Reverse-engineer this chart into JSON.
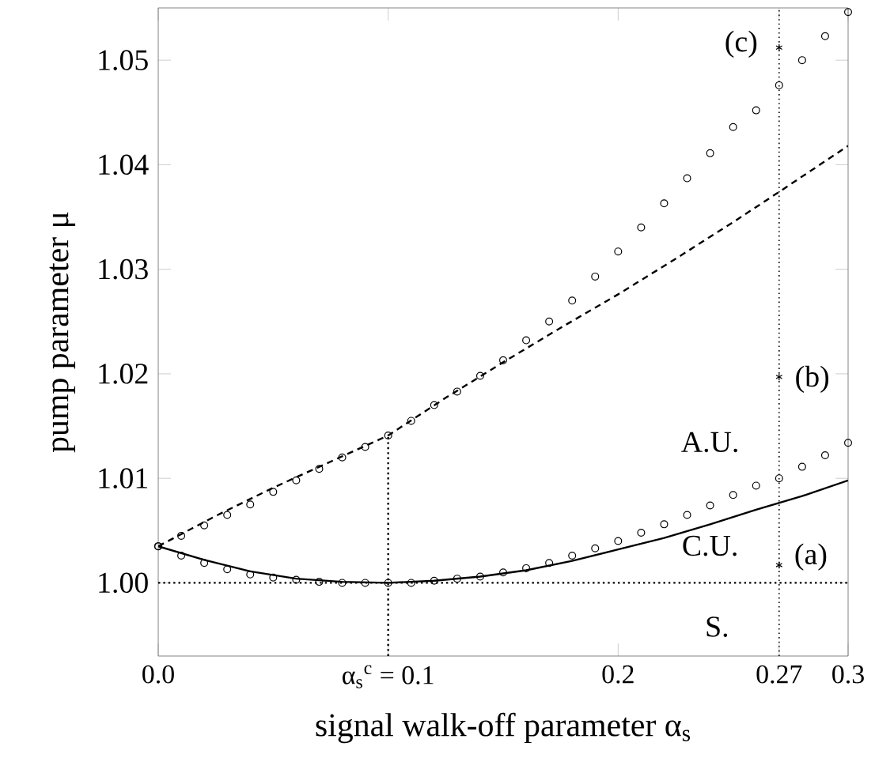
{
  "chart_data": {
    "type": "line",
    "xlabel": "signal walk-off parameter α$_{s}$",
    "ylabel": "pump parameter  μ",
    "xlim": [
      0,
      0.3
    ],
    "ylim": [
      0.993,
      1.055
    ],
    "xticks": [
      {
        "value": 0,
        "label": "0.0"
      },
      {
        "value": 0.1,
        "label": "α$_{s}$$^{c}$ =  0.1"
      },
      {
        "value": 0.2,
        "label": "0.2"
      },
      {
        "value": 0.27,
        "label": "0.27"
      },
      {
        "value": 0.3,
        "label": "0.3"
      }
    ],
    "yticks": [
      {
        "value": 1.0,
        "label": "1.00"
      },
      {
        "value": 1.01,
        "label": "1.01"
      },
      {
        "value": 1.02,
        "label": "1.02"
      },
      {
        "value": 1.03,
        "label": "1.03"
      },
      {
        "value": 1.04,
        "label": "1.04"
      },
      {
        "value": 1.05,
        "label": "1.05"
      }
    ],
    "grid": false,
    "series": [
      {
        "line_style": "solid",
        "color": "#000000",
        "x": [
          0,
          0.02,
          0.04,
          0.06,
          0.08,
          0.1,
          0.12,
          0.14,
          0.16,
          0.18,
          0.2,
          0.22,
          0.24,
          0.26,
          0.28,
          0.3
        ],
        "values": [
          1.0035,
          1.0022,
          1.0011,
          1.0004,
          1.0001,
          1.0,
          1.0002,
          1.0006,
          1.0012,
          1.0021,
          1.0032,
          1.0043,
          1.0056,
          1.007,
          1.0083,
          1.0098
        ]
      },
      {
        "line_style": "dashed",
        "color": "#000000",
        "x": [
          0,
          0.025,
          0.05,
          0.075,
          0.1,
          0.125,
          0.15,
          0.175,
          0.2,
          0.225,
          0.25,
          0.27,
          0.3
        ],
        "values": [
          1.0035,
          1.0064,
          1.0091,
          1.0116,
          1.0141,
          1.0177,
          1.0211,
          1.0244,
          1.0276,
          1.031,
          1.0345,
          1.0374,
          1.0418
        ]
      },
      {
        "type": "scatter",
        "marker": "circle",
        "color": "#000000",
        "x": [
          0,
          0.01,
          0.02,
          0.03,
          0.04,
          0.05,
          0.06,
          0.07,
          0.08,
          0.09,
          0.1,
          0.11,
          0.12,
          0.13,
          0.14,
          0.15,
          0.16,
          0.17,
          0.18,
          0.19,
          0.2,
          0.21,
          0.22,
          0.23,
          0.24,
          0.25,
          0.26,
          0.27,
          0.28,
          0.29,
          0.3
        ],
        "values": [
          1.0035,
          1.0026,
          1.0019,
          1.0013,
          1.0008,
          1.0005,
          1.0003,
          1.0001,
          1.0,
          1.0,
          1.0,
          1.0,
          1.0002,
          1.0004,
          1.0006,
          1.001,
          1.0014,
          1.0019,
          1.0026,
          1.0033,
          1.004,
          1.0048,
          1.0056,
          1.0065,
          1.0074,
          1.0084,
          1.0093,
          1.01,
          1.0111,
          1.0122,
          1.0134
        ]
      },
      {
        "type": "scatter",
        "marker": "circle",
        "color": "#000000",
        "x": [
          0,
          0.01,
          0.02,
          0.03,
          0.04,
          0.05,
          0.06,
          0.07,
          0.08,
          0.09,
          0.1,
          0.11,
          0.12,
          0.13,
          0.14,
          0.15,
          0.16,
          0.17,
          0.18,
          0.19,
          0.2,
          0.21,
          0.22,
          0.23,
          0.24,
          0.25,
          0.26,
          0.27,
          0.28,
          0.29,
          0.3
        ],
        "values": [
          1.0035,
          1.0045,
          1.0055,
          1.0065,
          1.0075,
          1.0087,
          1.0098,
          1.0109,
          1.012,
          1.013,
          1.0141,
          1.0155,
          1.017,
          1.0183,
          1.0198,
          1.0213,
          1.0232,
          1.025,
          1.027,
          1.0293,
          1.0317,
          1.034,
          1.0363,
          1.0387,
          1.0411,
          1.0436,
          1.0452,
          1.0476,
          1.05,
          1.0523,
          1.0546
        ]
      },
      {
        "line_style": "dotted",
        "color": "#000000",
        "x": [
          0.1,
          0.1
        ],
        "values": [
          0.993,
          1.0141
        ]
      },
      {
        "type": "scatter",
        "marker": "cross",
        "color": "#000000",
        "x": [
          0.27,
          0.27,
          0.27
        ],
        "values": [
          1.0512,
          1.0197,
          1.0017
        ]
      }
    ],
    "ref_lines": [
      {
        "axis": "y",
        "value": 1.0,
        "line_style": "dotted"
      },
      {
        "axis": "x",
        "value": 0.27,
        "line_style": "dotted"
      }
    ],
    "annotations": [
      "(c)",
      "(b)",
      "(a)",
      "A.U.",
      "C.U.",
      "S."
    ]
  }
}
